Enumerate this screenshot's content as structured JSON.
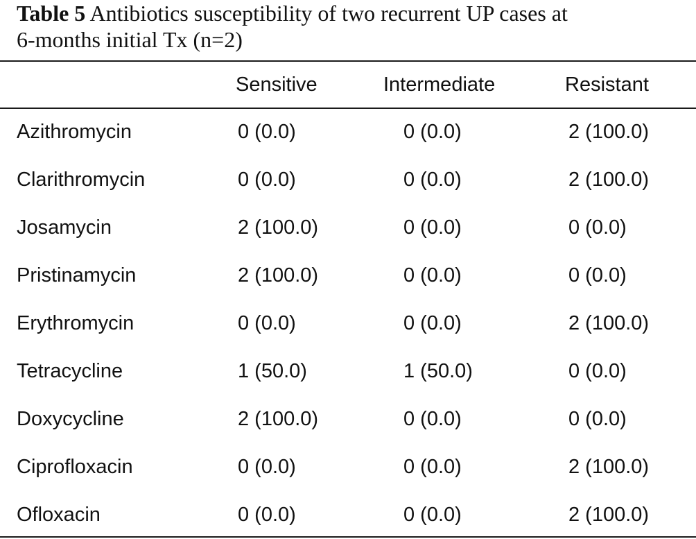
{
  "table": {
    "caption_label": "Table 5",
    "caption_text_line1": " Antibiotics susceptibility of two recurrent UP cases at",
    "caption_text_line2": "6-months initial Tx (n=2)",
    "columns": [
      "",
      "Sensitive",
      "Intermediate",
      "Resistant"
    ],
    "rows": [
      {
        "drug": "Azithromycin",
        "sensitive": "0 (0.0)",
        "intermediate": "0 (0.0)",
        "resistant": "2 (100.0)"
      },
      {
        "drug": "Clarithromycin",
        "sensitive": "0 (0.0)",
        "intermediate": "0 (0.0)",
        "resistant": "2 (100.0)"
      },
      {
        "drug": "Josamycin",
        "sensitive": "2 (100.0)",
        "intermediate": "0 (0.0)",
        "resistant": "0 (0.0)"
      },
      {
        "drug": "Pristinamycin",
        "sensitive": "2 (100.0)",
        "intermediate": "0 (0.0)",
        "resistant": "0 (0.0)"
      },
      {
        "drug": "Erythromycin",
        "sensitive": "0 (0.0)",
        "intermediate": "0 (0.0)",
        "resistant": "2 (100.0)"
      },
      {
        "drug": "Tetracycline",
        "sensitive": "1 (50.0)",
        "intermediate": "1 (50.0)",
        "resistant": "0 (0.0)"
      },
      {
        "drug": "Doxycycline",
        "sensitive": "2 (100.0)",
        "intermediate": "0 (0.0)",
        "resistant": "0 (0.0)"
      },
      {
        "drug": "Ciprofloxacin",
        "sensitive": "0 (0.0)",
        "intermediate": "0 (0.0)",
        "resistant": "2 (100.0)"
      },
      {
        "drug": "Ofloxacin",
        "sensitive": "0 (0.0)",
        "intermediate": "0 (0.0)",
        "resistant": "2 (100.0)"
      }
    ]
  }
}
